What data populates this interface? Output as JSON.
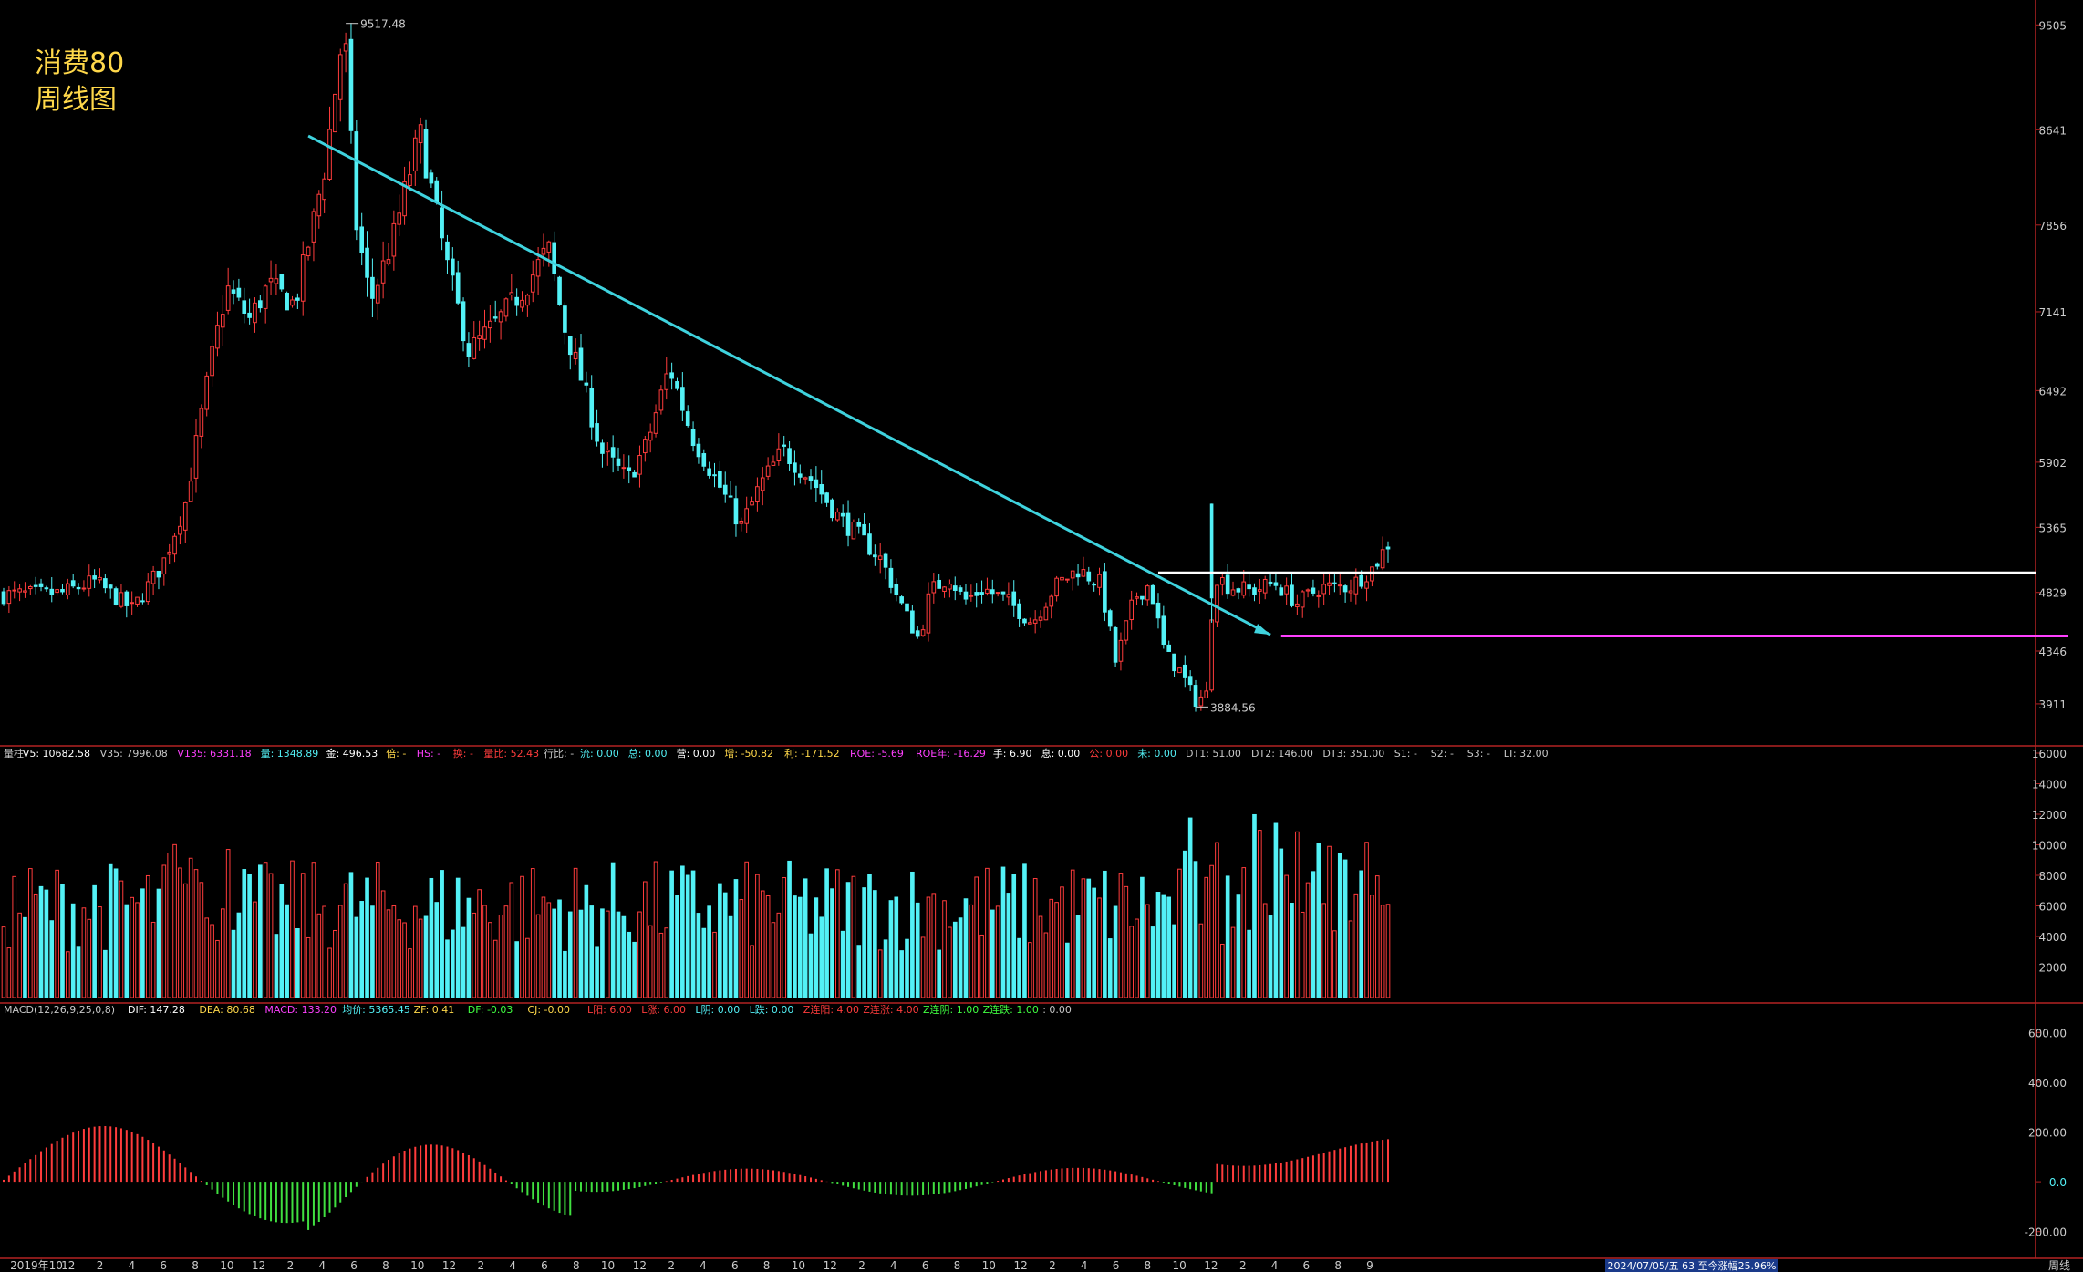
{
  "title": {
    "line1": "消费80",
    "line2": "周线图"
  },
  "colors": {
    "up": "#ff3c3c",
    "down": "#53f1f6",
    "trend": "#3fd3de",
    "white": "#ffffff",
    "magenta": "#ff40ff",
    "yellow": "#ffd84a",
    "axis": "#b22222",
    "text": "#c8c8c8"
  },
  "chart_data": [
    {
      "type": "candlestick",
      "name": "price-panel",
      "ylim": [
        3700,
        9650
      ],
      "y_ticks": [
        9505,
        8641,
        7856,
        7141,
        6492,
        5902,
        5365,
        4829,
        4346,
        3911
      ],
      "high_label": "9517.48",
      "low_label": "3884.56",
      "trendline": {
        "from": [
          57,
          8590
        ],
        "to": [
          237,
          4480
        ]
      },
      "resistance": {
        "value": 4990,
        "from": 216
      },
      "support": {
        "value": 4470,
        "from": 239
      }
    },
    {
      "type": "bar",
      "name": "volume-panel",
      "ylim": [
        0,
        16000
      ],
      "y_ticks": [
        "16000",
        "14000",
        "12000",
        "10000",
        "8000",
        "6000",
        "4000",
        "2000"
      ],
      "header": [
        {
          "text": "量柱",
          "color": "#c8c8c8"
        },
        {
          "text": "V5: 10682.58",
          "color": "#ffffff"
        },
        {
          "text": "V35: 7996.08",
          "color": "#c8c8c8"
        },
        {
          "text": "V135: 6331.18",
          "color": "#ff40ff"
        },
        {
          "text": "量: 1348.89",
          "color": "#53f1f6"
        },
        {
          "text": "金: 496.53",
          "color": "#ffffff"
        },
        {
          "text": "倍: -",
          "color": "#ffd84a"
        },
        {
          "text": "HS: -",
          "color": "#ff40ff"
        },
        {
          "text": "换: -",
          "color": "#ff3c3c"
        },
        {
          "text": "量比: 52.43",
          "color": "#ff3c3c"
        },
        {
          "text": "行比: -",
          "color": "#c8c8c8"
        },
        {
          "text": "流: 0.00",
          "color": "#53f1f6"
        },
        {
          "text": "总: 0.00",
          "color": "#53f1f6"
        },
        {
          "text": "营: 0.00",
          "color": "#ffffff"
        },
        {
          "text": "增: -50.82",
          "color": "#ffd84a"
        },
        {
          "text": "利: -171.52",
          "color": "#ffd84a"
        },
        {
          "text": "ROE: -5.69",
          "color": "#ff40ff"
        },
        {
          "text": "ROE年: -16.29",
          "color": "#ff40ff"
        },
        {
          "text": "手: 6.90",
          "color": "#ffffff"
        },
        {
          "text": "息: 0.00",
          "color": "#ffffff"
        },
        {
          "text": "公: 0.00",
          "color": "#ff3c3c"
        },
        {
          "text": "未: 0.00",
          "color": "#53f1f6"
        },
        {
          "text": "DT1: 51.00",
          "color": "#c8c8c8"
        },
        {
          "text": "DT2: 146.00",
          "color": "#c8c8c8"
        },
        {
          "text": "DT3: 351.00",
          "color": "#c8c8c8"
        },
        {
          "text": "S1: -",
          "color": "#c8c8c8"
        },
        {
          "text": "S2: -",
          "color": "#c8c8c8"
        },
        {
          "text": "S3: -",
          "color": "#c8c8c8"
        },
        {
          "text": "LT: 32.00",
          "color": "#c8c8c8"
        }
      ]
    },
    {
      "type": "bar",
      "name": "macd-panel",
      "ylim": [
        -300,
        700
      ],
      "y_ticks": [
        "600.00",
        "400.00",
        "200.00",
        "0.0",
        "-200.00"
      ],
      "header": [
        {
          "text": "MACD(12,26,9,25,0,8)",
          "color": "#c8c8c8"
        },
        {
          "text": "DIF: 147.28",
          "color": "#ffffff"
        },
        {
          "text": "DEA: 80.68",
          "color": "#ffd84a"
        },
        {
          "text": "MACD: 133.20",
          "color": "#ff40ff"
        },
        {
          "text": "均价: 5365.45",
          "color": "#53f1f6"
        },
        {
          "text": "ZF: 0.41",
          "color": "#ffd84a"
        },
        {
          "text": "DF: -0.03",
          "color": "#40ff40"
        },
        {
          "text": "CJ: -0.00",
          "color": "#ffd84a"
        },
        {
          "text": "L阳: 6.00",
          "color": "#ff3c3c"
        },
        {
          "text": "L涨: 6.00",
          "color": "#ff3c3c"
        },
        {
          "text": "L阴: 0.00",
          "color": "#53f1f6"
        },
        {
          "text": "L跌: 0.00",
          "color": "#53f1f6"
        },
        {
          "text": "Z连阳: 4.00",
          "color": "#ff3c3c"
        },
        {
          "text": "Z连涨: 4.00",
          "color": "#ff3c3c"
        },
        {
          "text": "Z连阴: 1.00",
          "color": "#40ff40"
        },
        {
          "text": "Z连跌: 1.00",
          "color": "#40ff40"
        },
        {
          "text": ": 0.00",
          "color": "#c8c8c8"
        }
      ]
    }
  ],
  "x_axis": {
    "labels": [
      "2019年10",
      "12",
      "2",
      "4",
      "6",
      "8",
      "10",
      "12",
      "2",
      "4",
      "6",
      "8",
      "10",
      "12",
      "2",
      "4",
      "6",
      "8",
      "10",
      "12",
      "2",
      "4",
      "6",
      "8",
      "10",
      "12",
      "2",
      "4",
      "6",
      "8",
      "10",
      "12",
      "2",
      "4",
      "6",
      "8",
      "10",
      "12",
      "2",
      "4",
      "6",
      "8",
      "9"
    ],
    "info_box": "2024/07/05/五 63 至今涨幅25.96%",
    "corner": "周线"
  }
}
